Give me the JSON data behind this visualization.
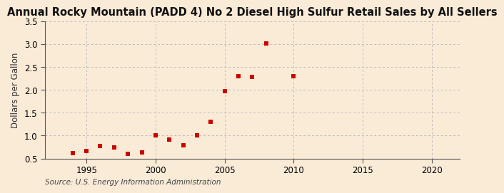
{
  "title": "Annual Rocky Mountain (PADD 4) No 2 Diesel High Sulfur Retail Sales by All Sellers",
  "ylabel": "Dollars per Gallon",
  "source": "Source: U.S. Energy Information Administration",
  "background_color": "#faebd7",
  "marker_color": "#cc0000",
  "years": [
    1994,
    1995,
    1996,
    1997,
    1998,
    1999,
    2000,
    2001,
    2002,
    2003,
    2004,
    2005,
    2006,
    2007,
    2008,
    2010
  ],
  "values": [
    0.61,
    0.67,
    0.77,
    0.74,
    0.6,
    0.64,
    1.0,
    0.91,
    0.79,
    1.01,
    1.31,
    1.97,
    2.3,
    2.29,
    3.02,
    2.3
  ],
  "xlim": [
    1992,
    2022
  ],
  "ylim": [
    0.5,
    3.5
  ],
  "xticks": [
    1995,
    2000,
    2005,
    2010,
    2015,
    2020
  ],
  "yticks": [
    0.5,
    1.0,
    1.5,
    2.0,
    2.5,
    3.0,
    3.5
  ],
  "grid_color": "#bbbbbb",
  "title_fontsize": 10.5,
  "label_fontsize": 8.5,
  "tick_fontsize": 8.5,
  "source_fontsize": 7.5,
  "marker_size": 16
}
